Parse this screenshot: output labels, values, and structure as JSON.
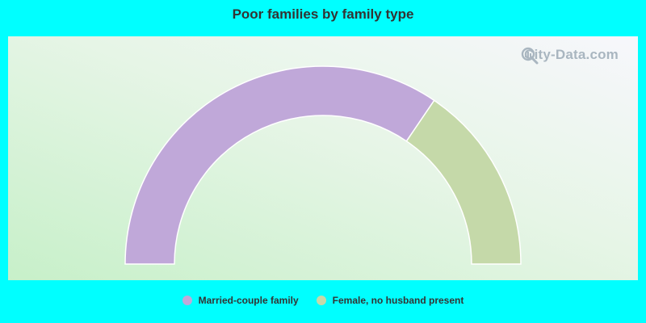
{
  "chart_data": {
    "type": "pie",
    "style": "half-donut",
    "title": "Poor families by family type",
    "slices": [
      {
        "label": "Married-couple family",
        "value": 69.0,
        "color": "#c0a8d9"
      },
      {
        "label": "Female, no husband present",
        "value": 31.0,
        "color": "#c5d9a9"
      }
    ],
    "legend": "bottom-center"
  },
  "watermark": {
    "text": "City-Data.com",
    "icon": "magnifier-chart-icon"
  }
}
